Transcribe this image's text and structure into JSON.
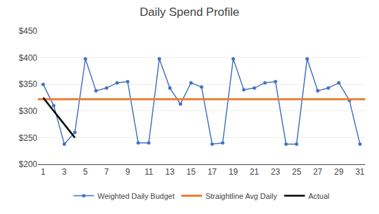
{
  "chart_data": {
    "type": "line",
    "title": "Daily Spend Profile",
    "series": [
      {
        "name": "Weighted Daily Budget",
        "color": "#4472C4",
        "marker": "circle",
        "x": [
          1,
          2,
          3,
          4,
          5,
          6,
          7,
          8,
          9,
          10,
          11,
          12,
          13,
          14,
          15,
          16,
          17,
          18,
          19,
          20,
          21,
          22,
          23,
          24,
          25,
          26,
          27,
          28,
          29,
          30,
          31
        ],
        "values": [
          350,
          310,
          238,
          260,
          398,
          338,
          343,
          353,
          355,
          240,
          240,
          398,
          343,
          313,
          353,
          345,
          238,
          240,
          398,
          340,
          343,
          353,
          355,
          238,
          238,
          398,
          338,
          343,
          353,
          320,
          238
        ]
      },
      {
        "name": "Straightline Avg Daily",
        "color": "#ED7D31",
        "type": "hline",
        "values": [
          322
        ]
      },
      {
        "name": "Actual",
        "color": "#000000",
        "x": [
          1,
          4
        ],
        "values": [
          325,
          250
        ]
      }
    ],
    "xlim": [
      0.5,
      31.5
    ],
    "xticks": [
      1,
      3,
      5,
      7,
      9,
      11,
      13,
      15,
      17,
      19,
      21,
      23,
      25,
      27,
      29,
      31
    ],
    "ylim": [
      200,
      450
    ],
    "yticks": [
      {
        "value": 200,
        "label": "$200"
      },
      {
        "value": 250,
        "label": "$250"
      },
      {
        "value": 300,
        "label": "$300"
      },
      {
        "value": 350,
        "label": "$350"
      },
      {
        "value": 400,
        "label": "$400"
      },
      {
        "value": 450,
        "label": "$450"
      }
    ],
    "grid": "y",
    "legend": "bottom"
  }
}
